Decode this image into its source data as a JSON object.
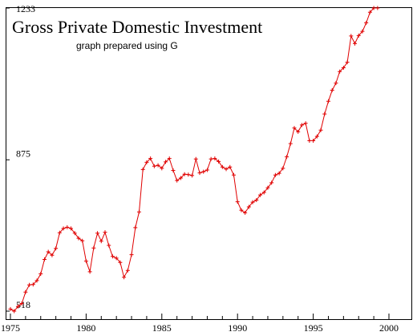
{
  "chart_data": {
    "type": "line",
    "title": "Gross Private Domestic Investment",
    "subtitle": "graph prepared using G",
    "xlabel": "",
    "ylabel": "",
    "xlim": [
      1975,
      2000
    ],
    "ylim": [
      518,
      1233
    ],
    "x_ticks": [
      "1975",
      "1980",
      "1985",
      "1990",
      "1995",
      "2000"
    ],
    "y_ticks": [
      "518",
      "875",
      "1233"
    ],
    "grid": false,
    "line_color": "#e00000",
    "marker": "plus",
    "series": [
      {
        "x": [
          1975.0,
          1975.25,
          1975.5,
          1975.75,
          1976.0,
          1976.25,
          1976.5,
          1976.75,
          1977.0,
          1977.25,
          1977.5,
          1977.75,
          1978.0,
          1978.25,
          1978.5,
          1978.75,
          1979.0,
          1979.25,
          1979.5,
          1979.75,
          1980.0,
          1980.25,
          1980.5,
          1980.75,
          1981.0,
          1981.25,
          1981.5,
          1981.75,
          1982.0,
          1982.25,
          1982.5,
          1982.75,
          1983.0,
          1983.25,
          1983.5,
          1983.75,
          1984.0,
          1984.25,
          1984.5,
          1984.75,
          1985.0,
          1985.25,
          1985.5,
          1985.75,
          1986.0,
          1986.25,
          1986.5,
          1986.75,
          1987.0,
          1987.25,
          1987.5,
          1987.75,
          1988.0,
          1988.25,
          1988.5,
          1988.75,
          1989.0,
          1989.25,
          1989.5,
          1989.75,
          1990.0,
          1990.25,
          1990.5,
          1990.75,
          1991.0,
          1991.25,
          1991.5,
          1991.75,
          1992.0,
          1992.25,
          1992.5,
          1992.75,
          1993.0,
          1993.25,
          1993.5,
          1993.75,
          1994.0,
          1994.25,
          1994.5,
          1994.75,
          1995.0,
          1995.25,
          1995.5,
          1995.75,
          1996.0,
          1996.25,
          1996.5,
          1996.75,
          1997.0,
          1997.25,
          1997.5,
          1997.75,
          1998.0,
          1998.25,
          1998.5,
          1998.75,
          1999.0,
          1999.25
        ],
        "values": [
          523,
          518,
          529,
          536,
          563,
          580,
          581,
          590,
          606,
          640,
          658,
          650,
          666,
          703,
          713,
          716,
          713,
          702,
          690,
          684,
          636,
          611,
          667,
          702,
          683,
          704,
          673,
          647,
          643,
          633,
          598,
          614,
          651,
          715,
          752,
          852,
          869,
          878,
          860,
          862,
          855,
          870,
          878,
          850,
          826,
          832,
          841,
          840,
          838,
          877,
          844,
          847,
          851,
          877,
          878,
          871,
          858,
          853,
          858,
          839,
          776,
          756,
          750,
          764,
          775,
          780,
          792,
          798,
          809,
          821,
          839,
          843,
          855,
          882,
          913,
          950,
          941,
          957,
          961,
          920,
          920,
          930,
          945,
          983,
          1013,
          1039,
          1056,
          1083,
          1092,
          1105,
          1167,
          1149,
          1168,
          1178,
          1198,
          1223,
          1233,
          1233
        ]
      }
    ]
  }
}
